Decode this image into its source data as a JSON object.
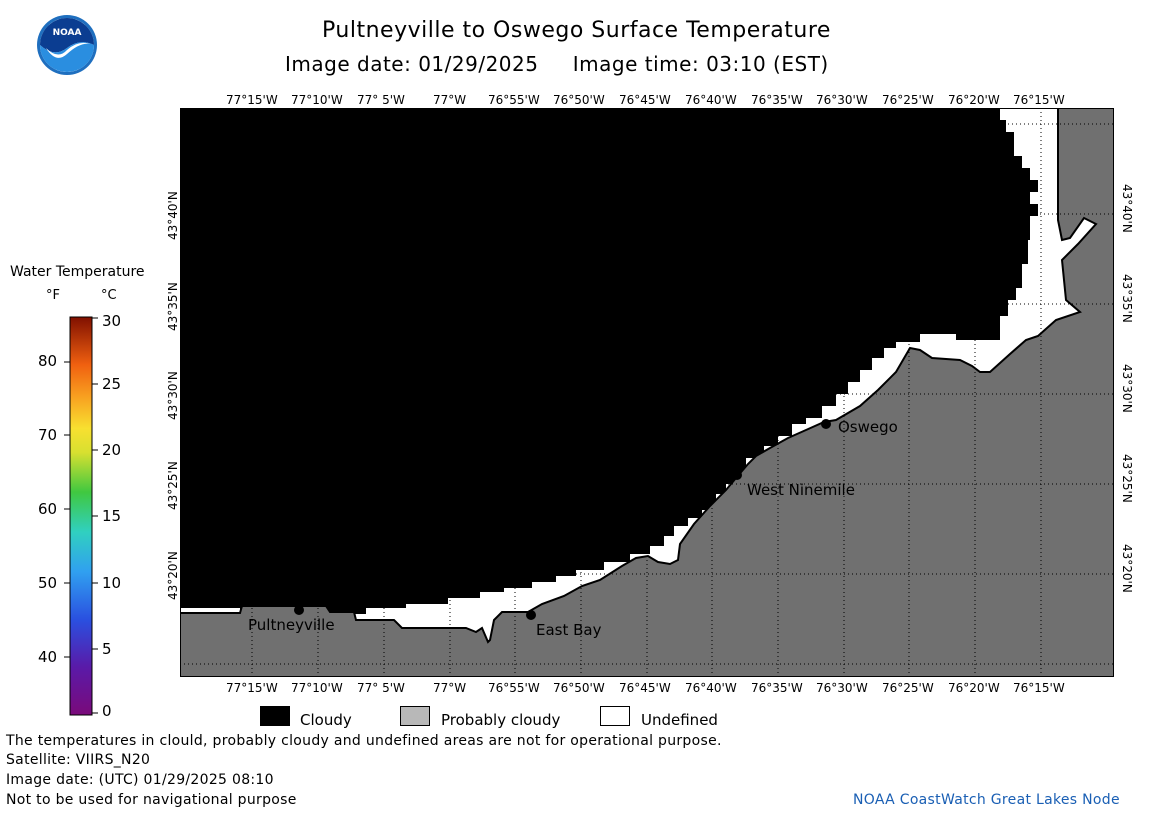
{
  "title": "Pultneyville to Oswego Surface Temperature",
  "subtitle": {
    "image_date_label": "Image date:",
    "image_date": "01/29/2025",
    "image_time_label": "Image time:",
    "image_time": "03:10 (EST)"
  },
  "logo_text": "NOAA",
  "longitude_labels": [
    "77°15'W",
    "77°10'W",
    "77° 5'W",
    "77°W",
    "76°55'W",
    "76°50'W",
    "76°45'W",
    "76°40'W",
    "76°35'W",
    "76°30'W",
    "76°25'W",
    "76°20'W",
    "76°15'W"
  ],
  "latitude_labels": [
    "43°40'N",
    "43°35'N",
    "43°30'N",
    "43°25'N",
    "43°20'N"
  ],
  "places": [
    "Pultneyville",
    "East Bay",
    "West Ninemile",
    "Oswego"
  ],
  "legend": {
    "title": "Water Temperature",
    "unit_f": "°F",
    "unit_c": "°C",
    "f_ticks": [
      "80",
      "70",
      "60",
      "50",
      "40"
    ],
    "c_ticks": [
      "30",
      "25",
      "20",
      "15",
      "10",
      "5",
      "0"
    ]
  },
  "key": {
    "cloudy": "Cloudy",
    "probably_cloudy": "Probably cloudy",
    "undefined": "Undefined",
    "colors": {
      "cloudy": "#000000",
      "probably_cloudy": "#b8b8b8",
      "undefined": "#ffffff",
      "land": "#707070"
    }
  },
  "footer": {
    "line1": "The temperatures in clould, probably cloudy and undefined areas are not for operational purpose.",
    "line2": "Satellite: VIIRS_N20",
    "line3": "Image date: (UTC) 01/29/2025  08:10",
    "line4": "Not to be used for navigational purpose",
    "credit": "NOAA CoastWatch Great Lakes Node"
  }
}
